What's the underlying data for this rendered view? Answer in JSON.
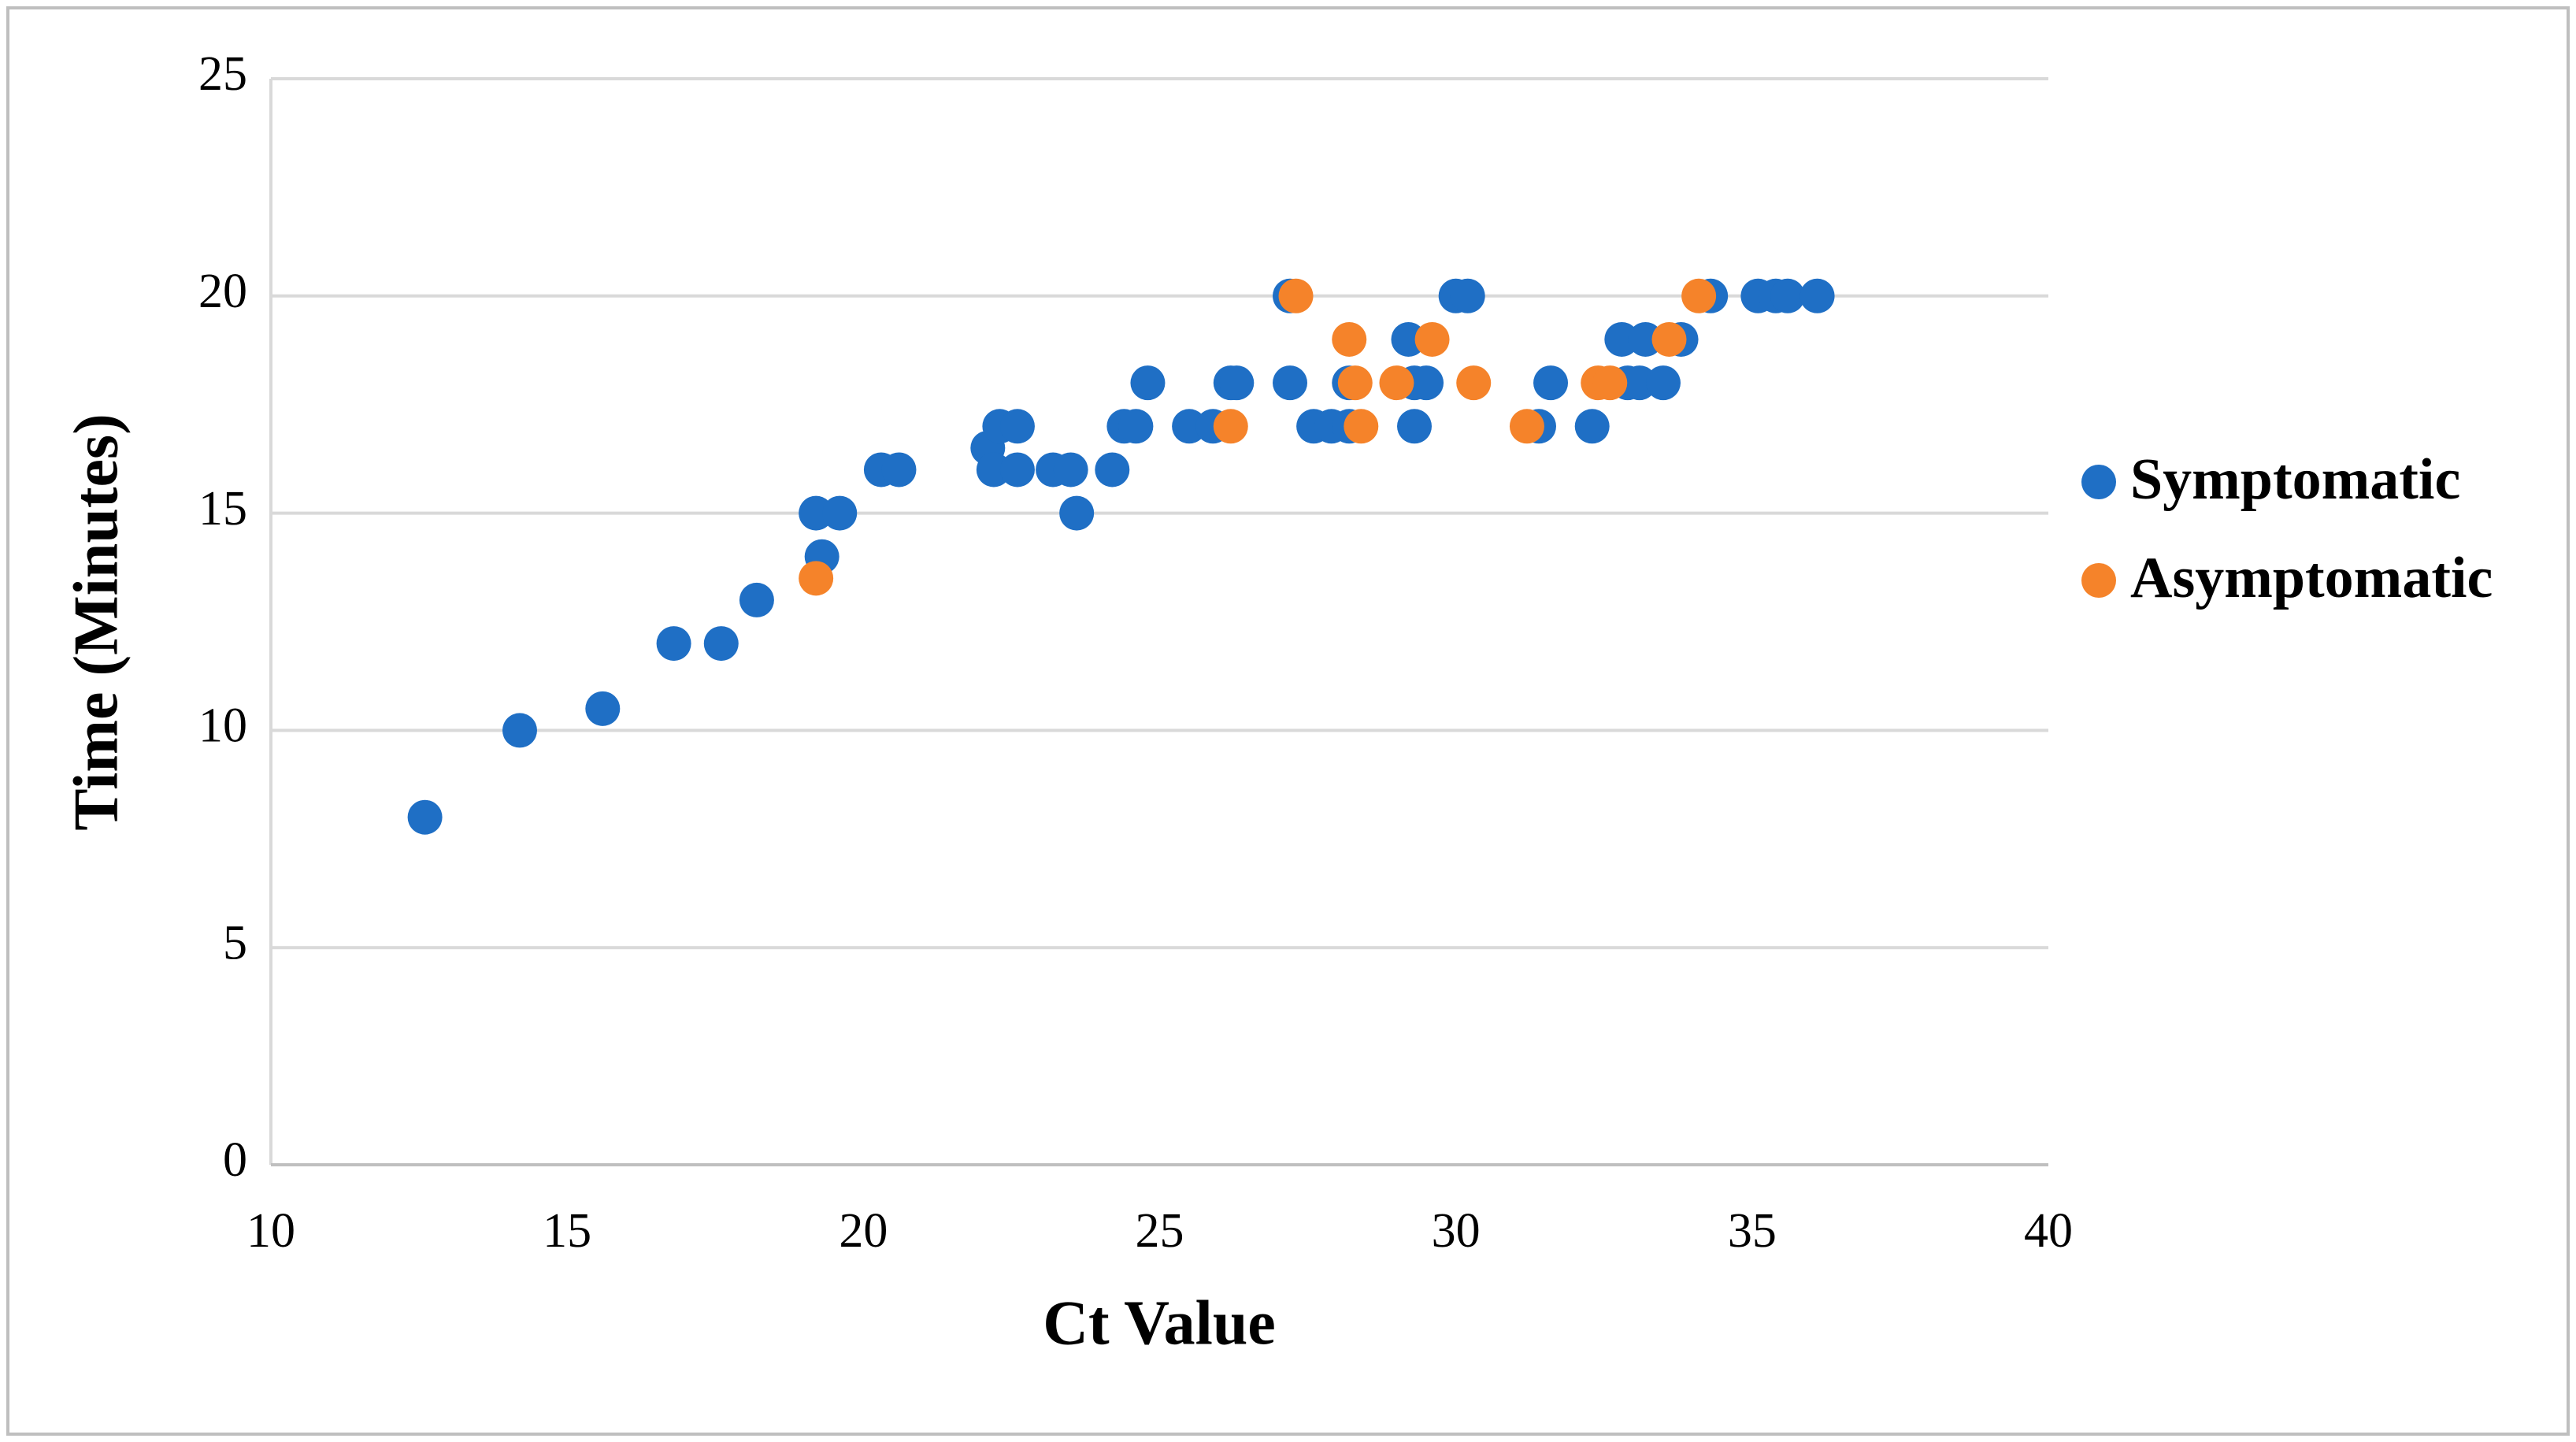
{
  "chart_data": {
    "type": "scatter",
    "x_label": "Ct Value",
    "y_label": "Time (Minutes)",
    "xlim": [
      10,
      40
    ],
    "xticks": [
      10,
      15,
      20,
      25,
      30,
      35,
      40
    ],
    "ylim": [
      0,
      25
    ],
    "yticks": [
      0,
      5,
      10,
      15,
      20,
      25
    ],
    "grid": true,
    "legend": "right",
    "series": [
      {
        "name": "Symptomatic",
        "color": "#1f6fc5",
        "x": [
          12.6,
          14.2,
          15.6,
          16.8,
          17.6,
          18.2,
          19.3,
          19.2,
          19.6,
          20.3,
          20.6,
          22.1,
          22.2,
          22.3,
          22.6,
          22.6,
          23.2,
          23.5,
          23.6,
          24.2,
          24.4,
          24.6,
          24.8,
          25.5,
          25.9,
          26.2,
          26.3,
          27.2,
          27.2,
          27.6,
          27.9,
          28.2,
          28.2,
          29.2,
          29.3,
          29.3,
          29.5,
          30.0,
          30.2,
          31.4,
          31.6,
          32.3,
          32.8,
          32.9,
          33.2,
          33.1,
          33.5,
          33.8,
          34.3,
          35.1,
          35.4,
          35.6,
          36.1
        ],
        "values": [
          8,
          10,
          10.5,
          12,
          12,
          13,
          14,
          15,
          15,
          16,
          16,
          16.5,
          16,
          17,
          17,
          16,
          16,
          16,
          15,
          16,
          17,
          17,
          18,
          17,
          17,
          18,
          18,
          20,
          18,
          17,
          17,
          18,
          17,
          19,
          17,
          18,
          18,
          20,
          20,
          17,
          18,
          17,
          19,
          18,
          19,
          18,
          18,
          19,
          20,
          20,
          20,
          20,
          20
        ]
      },
      {
        "name": "Asymptomatic",
        "color": "#f5832a",
        "x": [
          19.2,
          26.2,
          27.3,
          28.2,
          28.3,
          28.4,
          29.0,
          29.6,
          30.3,
          31.2,
          32.4,
          32.6,
          33.6,
          34.1
        ],
        "values": [
          13.5,
          17,
          20,
          19,
          18,
          17,
          18,
          19,
          18,
          17,
          18,
          18,
          19,
          20
        ]
      }
    ]
  }
}
